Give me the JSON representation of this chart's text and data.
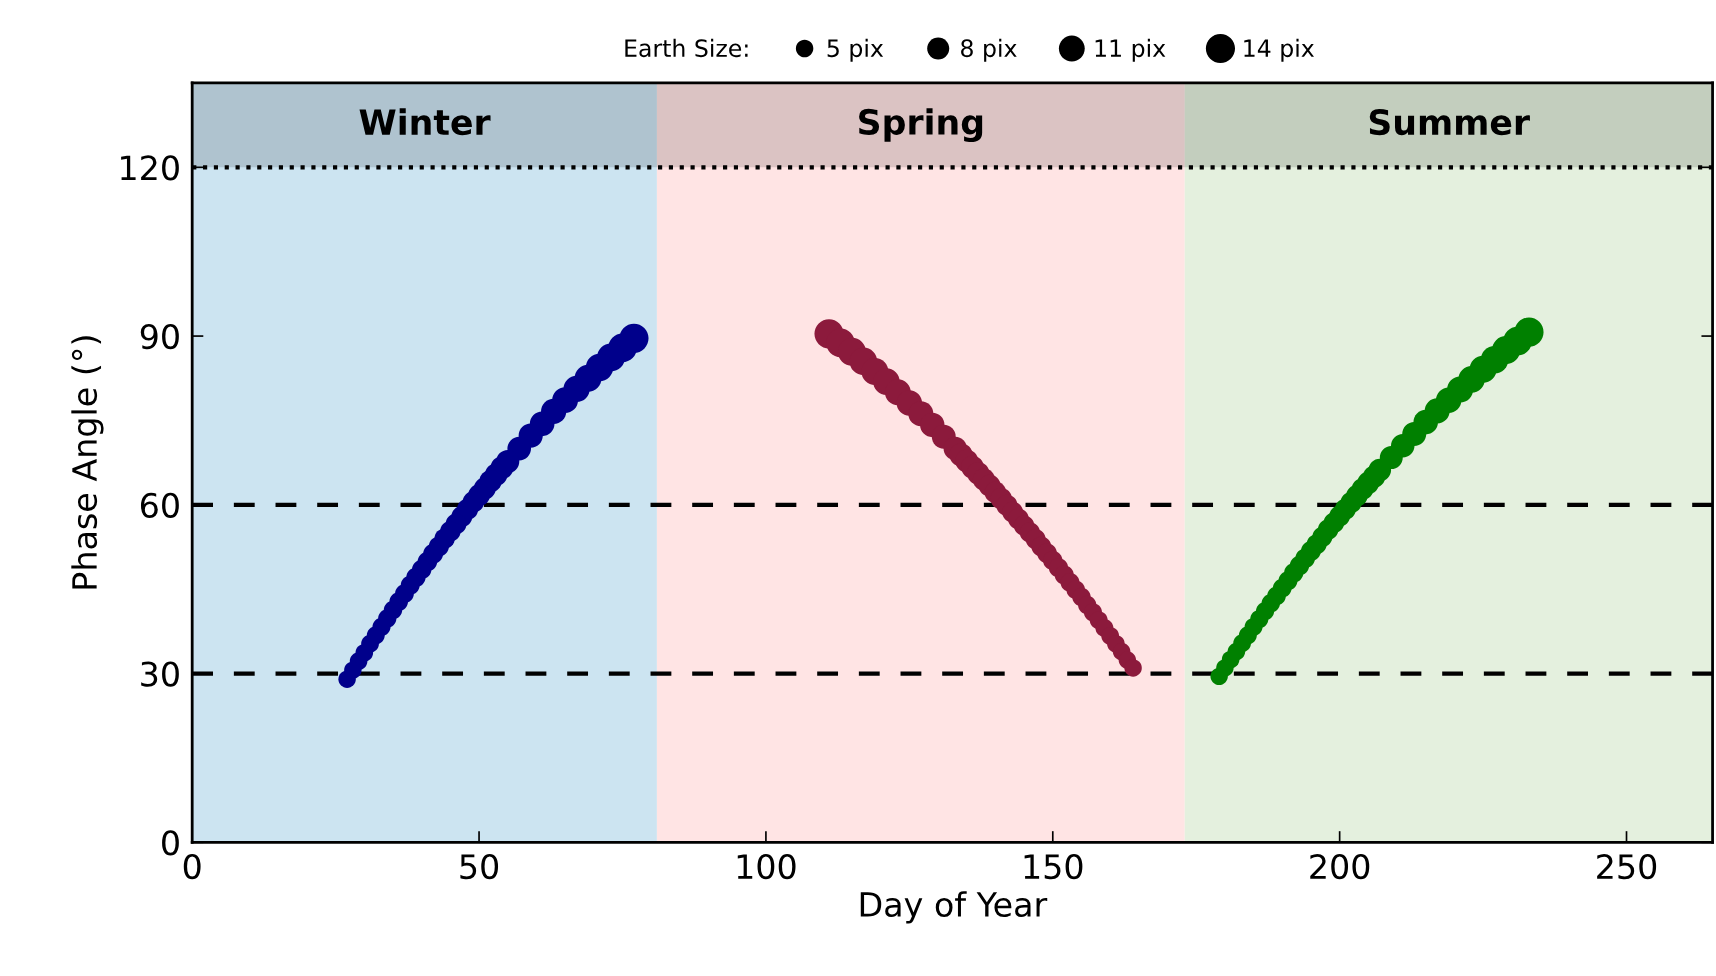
{
  "chart_data": {
    "type": "bubble",
    "xlabel": "Day of Year",
    "ylabel": "Phase Angle (°)",
    "legend_title": "Earth Size:",
    "legend": "top",
    "marker": "circle",
    "xlim": [
      0,
      265
    ],
    "xticks": [
      0,
      50,
      100,
      150,
      200,
      250
    ],
    "ylim": [
      0,
      135
    ],
    "yticks": [
      0,
      30,
      60,
      90,
      120
    ],
    "size_legend": [
      {
        "value": 5,
        "label": "5 pix"
      },
      {
        "value": 8,
        "label": "8 pix"
      },
      {
        "value": 11,
        "label": "11 pix"
      },
      {
        "value": 14,
        "label": "14 pix"
      }
    ],
    "bands": [
      {
        "axis": "x",
        "from": 0,
        "to": 81,
        "label": "Winter",
        "color": "#cce4f1"
      },
      {
        "axis": "x",
        "from": 81,
        "to": 173,
        "label": "Spring",
        "color": "#ffe4e4"
      },
      {
        "axis": "x",
        "from": 173,
        "to": 265,
        "label": "Summer",
        "color": "#e4f0de"
      },
      {
        "axis": "y",
        "from": 120,
        "to": 135,
        "color": "#000000"
      }
    ],
    "ref_lines": [
      {
        "axis": "y",
        "value": 30,
        "line_style": "dashed",
        "color": "#000000"
      },
      {
        "axis": "y",
        "value": 60,
        "line_style": "dashed",
        "color": "#000000"
      },
      {
        "axis": "y",
        "value": 120,
        "line_style": "dotted",
        "color": "#000000"
      }
    ],
    "series": [
      {
        "color": "#00008b",
        "x": [
          27,
          28,
          29,
          30,
          31,
          32,
          33,
          34,
          35,
          36,
          37,
          38,
          39,
          40,
          41,
          42,
          43,
          44,
          45,
          46,
          47,
          48,
          49,
          50,
          51,
          52,
          53,
          54,
          55,
          57,
          59,
          61,
          63,
          65,
          67,
          69,
          71,
          73,
          75,
          77
        ],
        "values": [
          29.0,
          30.6,
          32.2,
          33.7,
          35.3,
          36.8,
          38.3,
          39.8,
          41.3,
          42.8,
          44.2,
          45.7,
          47.1,
          48.5,
          49.9,
          51.3,
          52.6,
          54.0,
          55.3,
          56.6,
          57.9,
          59.2,
          60.5,
          61.7,
          62.9,
          64.2,
          65.4,
          66.6,
          67.7,
          70.0,
          72.3,
          74.4,
          76.6,
          78.6,
          80.6,
          82.5,
          84.4,
          86.2,
          87.9,
          89.6
        ],
        "sizes": [
          5.0,
          5.0,
          5.1,
          5.1,
          5.2,
          5.3,
          5.4,
          5.5,
          5.6,
          5.7,
          5.8,
          5.9,
          6.1,
          6.2,
          6.3,
          6.5,
          6.6,
          6.8,
          6.9,
          7.1,
          7.3,
          7.4,
          7.6,
          7.8,
          8.0,
          8.2,
          8.4,
          8.6,
          8.8,
          9.2,
          9.6,
          10.0,
          10.5,
          11.0,
          11.4,
          11.9,
          12.4,
          12.9,
          13.5,
          14.0
        ]
      },
      {
        "color": "#8c1a3c",
        "x": [
          111,
          113,
          115,
          117,
          119,
          121,
          123,
          125,
          127,
          129,
          131,
          133,
          134,
          135,
          136,
          137,
          138,
          139,
          140,
          141,
          142,
          143,
          144,
          145,
          146,
          147,
          148,
          149,
          150,
          151,
          152,
          153,
          154,
          155,
          156,
          157,
          158,
          159,
          160,
          161,
          162,
          163,
          164
        ],
        "values": [
          90.4,
          88.8,
          87.2,
          85.5,
          83.7,
          81.9,
          80.0,
          78.1,
          76.2,
          74.2,
          72.1,
          70.0,
          68.9,
          67.8,
          66.7,
          65.6,
          64.5,
          63.4,
          62.2,
          61.1,
          59.9,
          58.7,
          57.5,
          56.3,
          55.1,
          53.9,
          52.6,
          51.4,
          50.1,
          48.8,
          47.5,
          46.2,
          44.9,
          43.6,
          42.2,
          40.9,
          39.5,
          38.1,
          36.7,
          35.3,
          33.9,
          32.4,
          31.0
        ],
        "sizes": [
          14.0,
          13.5,
          13.0,
          12.5,
          12.0,
          11.6,
          11.1,
          10.7,
          10.3,
          9.8,
          9.4,
          9.0,
          8.8,
          8.6,
          8.5,
          8.3,
          8.1,
          7.9,
          7.7,
          7.6,
          7.4,
          7.2,
          7.1,
          6.9,
          6.8,
          6.6,
          6.5,
          6.4,
          6.2,
          6.1,
          6.0,
          5.9,
          5.7,
          5.6,
          5.5,
          5.4,
          5.3,
          5.3,
          5.2,
          5.1,
          5.1,
          5.0,
          5.0
        ]
      },
      {
        "color": "#008000",
        "x": [
          179,
          180,
          181,
          182,
          183,
          184,
          185,
          186,
          187,
          188,
          189,
          190,
          191,
          192,
          193,
          194,
          195,
          196,
          197,
          198,
          199,
          200,
          201,
          202,
          203,
          204,
          205,
          206,
          207,
          209,
          211,
          213,
          215,
          217,
          219,
          221,
          223,
          225,
          227,
          229,
          231,
          233
        ],
        "values": [
          29.5,
          31.0,
          32.5,
          33.9,
          35.4,
          36.8,
          38.3,
          39.7,
          41.1,
          42.5,
          43.8,
          45.2,
          46.5,
          47.9,
          49.2,
          50.5,
          51.8,
          53.0,
          54.3,
          55.6,
          56.8,
          58.0,
          59.2,
          60.4,
          61.6,
          62.8,
          63.9,
          65.0,
          66.2,
          68.4,
          70.5,
          72.6,
          74.7,
          76.7,
          78.6,
          80.5,
          82.3,
          84.1,
          85.8,
          87.5,
          89.1,
          90.7
        ],
        "sizes": [
          5.0,
          5.0,
          5.1,
          5.1,
          5.2,
          5.3,
          5.3,
          5.4,
          5.5,
          5.6,
          5.7,
          5.8,
          5.9,
          6.1,
          6.2,
          6.3,
          6.5,
          6.6,
          6.7,
          6.9,
          7.0,
          7.2,
          7.3,
          7.5,
          7.7,
          7.8,
          8.0,
          8.2,
          8.4,
          8.7,
          9.1,
          9.5,
          9.9,
          10.3,
          10.7,
          11.2,
          11.6,
          12.1,
          12.5,
          13.0,
          13.5,
          14.0
        ]
      }
    ]
  }
}
